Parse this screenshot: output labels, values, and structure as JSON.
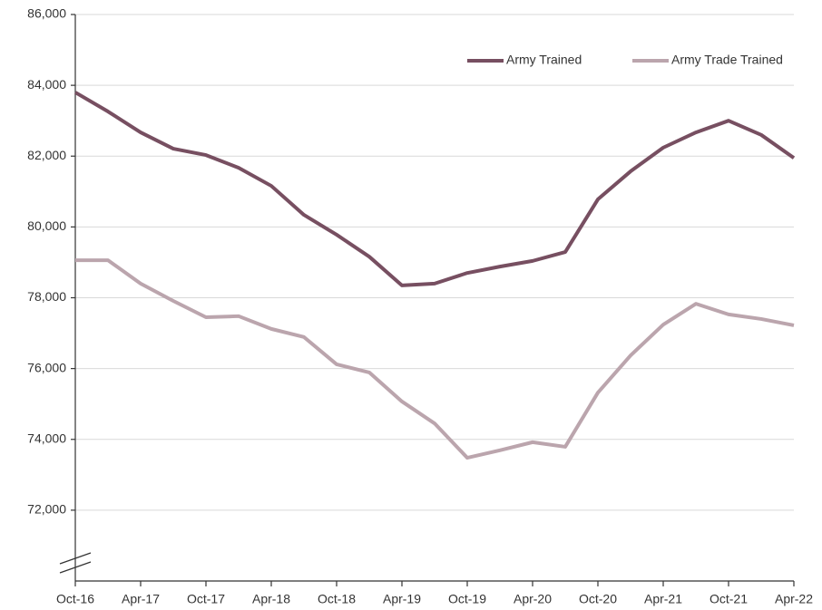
{
  "chart_data": {
    "type": "line",
    "categories": [
      "Oct-16",
      null,
      "Apr-17",
      null,
      "Oct-17",
      null,
      "Apr-18",
      null,
      "Oct-18",
      null,
      "Apr-19",
      null,
      "Oct-19",
      null,
      "Apr-20",
      null,
      "Oct-20",
      null,
      "Apr-21",
      null,
      "Oct-21",
      null,
      "Apr-22"
    ],
    "series": [
      {
        "name": "Army Trained",
        "color": "#774f61",
        "values": [
          83800,
          83260,
          82670,
          82210,
          82030,
          81670,
          81160,
          80340,
          79780,
          79160,
          78350,
          78400,
          78700,
          78880,
          79040,
          79290,
          80780,
          81570,
          82240,
          82670,
          83000,
          82600,
          81950
        ]
      },
      {
        "name": "Army Trade Trained",
        "color": "#bba5ad",
        "values": [
          79060,
          79060,
          78400,
          77910,
          77450,
          77480,
          77120,
          76890,
          76120,
          75890,
          75070,
          74450,
          73480,
          73690,
          73920,
          73790,
          75320,
          76370,
          77240,
          77830,
          77530,
          77400,
          77220
        ]
      }
    ],
    "ylim": [
      70000,
      86000
    ],
    "yticks": [
      {
        "value": 72000,
        "label": "72,000"
      },
      {
        "value": 74000,
        "label": "74,000"
      },
      {
        "value": 76000,
        "label": "76,000"
      },
      {
        "value": 78000,
        "label": "78,000"
      },
      {
        "value": 80000,
        "label": "80,000"
      },
      {
        "value": 82000,
        "label": "82,000"
      },
      {
        "value": 84000,
        "label": "84,000"
      },
      {
        "value": 86000,
        "label": "86,000"
      }
    ],
    "grid": true,
    "legend": "top-right"
  }
}
